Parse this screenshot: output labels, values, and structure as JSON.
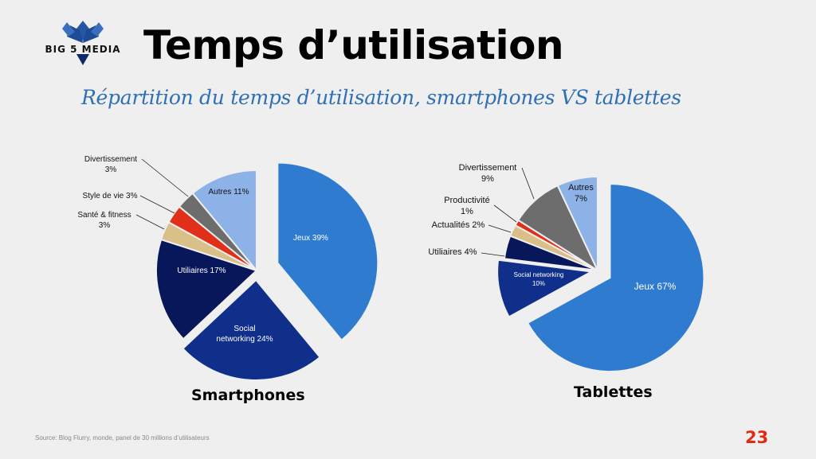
{
  "logo": {
    "text": "BIG 5 MEDIA",
    "colors": {
      "primary": "#2456a4",
      "dark": "#0d2a66"
    }
  },
  "title": "Temps d’utilisation",
  "subtitle": "Répartition du temps d’utilisation, smartphones VS tablettes",
  "source": "Source: Blog Flurry, monde, panel de 30 millions d’utilisateurs",
  "page_number": "23",
  "chart_data": [
    {
      "type": "pie",
      "title": "Smartphones",
      "slices": [
        {
          "label": "Jeux 39%",
          "value": 39,
          "color": "#2e7bd0"
        },
        {
          "label": "Social networking 24%",
          "value": 24,
          "color": "#0f2f8a"
        },
        {
          "label": "Utiliaires 17%",
          "value": 17,
          "color": "#08175a"
        },
        {
          "label": "Santé & fitness 3%",
          "value": 3,
          "color": "#d9bf88"
        },
        {
          "label": "Style de vie 3%",
          "value": 3,
          "color": "#e0301a"
        },
        {
          "label": "Divertissement 3%",
          "value": 3,
          "color": "#6d6d6d"
        },
        {
          "label": "Autres 11%",
          "value": 11,
          "color": "#8db2e8"
        }
      ]
    },
    {
      "type": "pie",
      "title": "Tablettes",
      "slices": [
        {
          "label": "Jeux 67%",
          "value": 67,
          "color": "#2e7bd0"
        },
        {
          "label": "Social networking 10%",
          "value": 10,
          "color": "#0f2f8a"
        },
        {
          "label": "Utiliaires 4%",
          "value": 4,
          "color": "#08175a"
        },
        {
          "label": "Actualités 2%",
          "value": 2,
          "color": "#d9bf88"
        },
        {
          "label": "Productivité 1%",
          "value": 1,
          "color": "#e0301a"
        },
        {
          "label": "Divertissement 9%",
          "value": 9,
          "color": "#6d6d6d"
        },
        {
          "label": "Autres 7%",
          "value": 7,
          "color": "#8db2e8"
        }
      ]
    }
  ]
}
